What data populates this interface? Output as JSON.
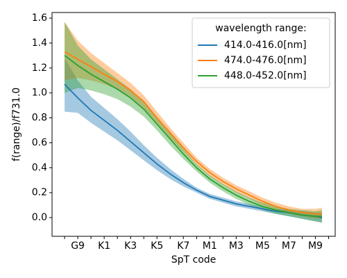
{
  "chart_data": {
    "type": "line",
    "xlabel": "SpT code",
    "ylabel": "f(range)/f731.0",
    "x": [
      0,
      1,
      2,
      3,
      4,
      5,
      6,
      7,
      8,
      9,
      10,
      11,
      12,
      13,
      14,
      15,
      16,
      17,
      18,
      19,
      19.5
    ],
    "xlim": [
      -0.95,
      20.5
    ],
    "xticks": [
      {
        "value": 1,
        "label": "G9"
      },
      {
        "value": 3,
        "label": "K1"
      },
      {
        "value": 5,
        "label": "K3"
      },
      {
        "value": 7,
        "label": "K5"
      },
      {
        "value": 9,
        "label": "K7"
      },
      {
        "value": 11,
        "label": "M1"
      },
      {
        "value": 13,
        "label": "M3"
      },
      {
        "value": 15,
        "label": "M5"
      },
      {
        "value": 17,
        "label": "M7"
      },
      {
        "value": 19,
        "label": "M9"
      }
    ],
    "xminor_ticks": [
      0,
      2,
      4,
      6,
      8,
      10,
      12,
      14,
      16,
      18,
      20
    ],
    "ylim": [
      -0.15,
      1.645
    ],
    "yticks": [
      {
        "value": 0,
        "label": "0.0"
      },
      {
        "value": 0.2,
        "label": "0.2"
      },
      {
        "value": 0.4,
        "label": "0.4"
      },
      {
        "value": 0.6,
        "label": "0.6"
      },
      {
        "value": 0.8,
        "label": "0.8"
      },
      {
        "value": 1.0,
        "label": "1.0"
      },
      {
        "value": 1.2,
        "label": "1.2"
      },
      {
        "value": 1.4,
        "label": "1.4"
      },
      {
        "value": 1.6,
        "label": "1.6"
      }
    ],
    "legend_title": "wavelength range:",
    "legend": "upper right",
    "series": [
      {
        "name": "414.0-416.0[nm]",
        "color": "#1f77b4",
        "values": [
          1.07,
          0.96,
          0.86,
          0.78,
          0.7,
          0.61,
          0.52,
          0.43,
          0.35,
          0.28,
          0.22,
          0.17,
          0.14,
          0.11,
          0.09,
          0.07,
          0.05,
          0.04,
          0.02,
          0.01,
          0.0
        ],
        "lower": [
          0.85,
          0.84,
          0.76,
          0.69,
          0.62,
          0.54,
          0.46,
          0.38,
          0.31,
          0.25,
          0.2,
          0.15,
          0.12,
          0.09,
          0.07,
          0.05,
          0.03,
          0.01,
          -0.01,
          -0.03,
          -0.04
        ],
        "upper": [
          1.28,
          1.1,
          0.97,
          0.88,
          0.79,
          0.69,
          0.58,
          0.48,
          0.39,
          0.31,
          0.24,
          0.19,
          0.16,
          0.13,
          0.11,
          0.09,
          0.07,
          0.06,
          0.05,
          0.04,
          0.04
        ]
      },
      {
        "name": "474.0-476.0[nm]",
        "color": "#ff7f0e",
        "values": [
          1.33,
          1.27,
          1.21,
          1.15,
          1.09,
          1.02,
          0.93,
          0.8,
          0.68,
          0.56,
          0.45,
          0.36,
          0.29,
          0.23,
          0.18,
          0.13,
          0.09,
          0.06,
          0.04,
          0.03,
          0.03
        ],
        "lower": [
          1.1,
          1.12,
          1.1,
          1.07,
          1.03,
          0.97,
          0.88,
          0.76,
          0.64,
          0.53,
          0.42,
          0.33,
          0.26,
          0.2,
          0.15,
          0.1,
          0.06,
          0.03,
          0.01,
          -0.01,
          -0.01
        ],
        "upper": [
          1.57,
          1.42,
          1.32,
          1.24,
          1.16,
          1.08,
          0.98,
          0.85,
          0.72,
          0.6,
          0.48,
          0.39,
          0.32,
          0.26,
          0.21,
          0.16,
          0.12,
          0.09,
          0.07,
          0.07,
          0.08
        ]
      },
      {
        "name": "448.0-452.0[nm]",
        "color": "#2ca02c",
        "values": [
          1.3,
          1.22,
          1.15,
          1.09,
          1.03,
          0.96,
          0.87,
          0.75,
          0.63,
          0.51,
          0.4,
          0.31,
          0.24,
          0.18,
          0.13,
          0.09,
          0.06,
          0.04,
          0.02,
          0.01,
          0.01
        ],
        "lower": [
          1.0,
          1.04,
          1.02,
          0.99,
          0.95,
          0.89,
          0.81,
          0.7,
          0.58,
          0.47,
          0.37,
          0.28,
          0.21,
          0.15,
          0.1,
          0.06,
          0.03,
          0.01,
          -0.01,
          -0.03,
          -0.04
        ],
        "upper": [
          1.57,
          1.38,
          1.27,
          1.19,
          1.11,
          1.03,
          0.93,
          0.8,
          0.68,
          0.55,
          0.43,
          0.34,
          0.27,
          0.21,
          0.16,
          0.12,
          0.09,
          0.07,
          0.06,
          0.05,
          0.06
        ]
      }
    ]
  }
}
